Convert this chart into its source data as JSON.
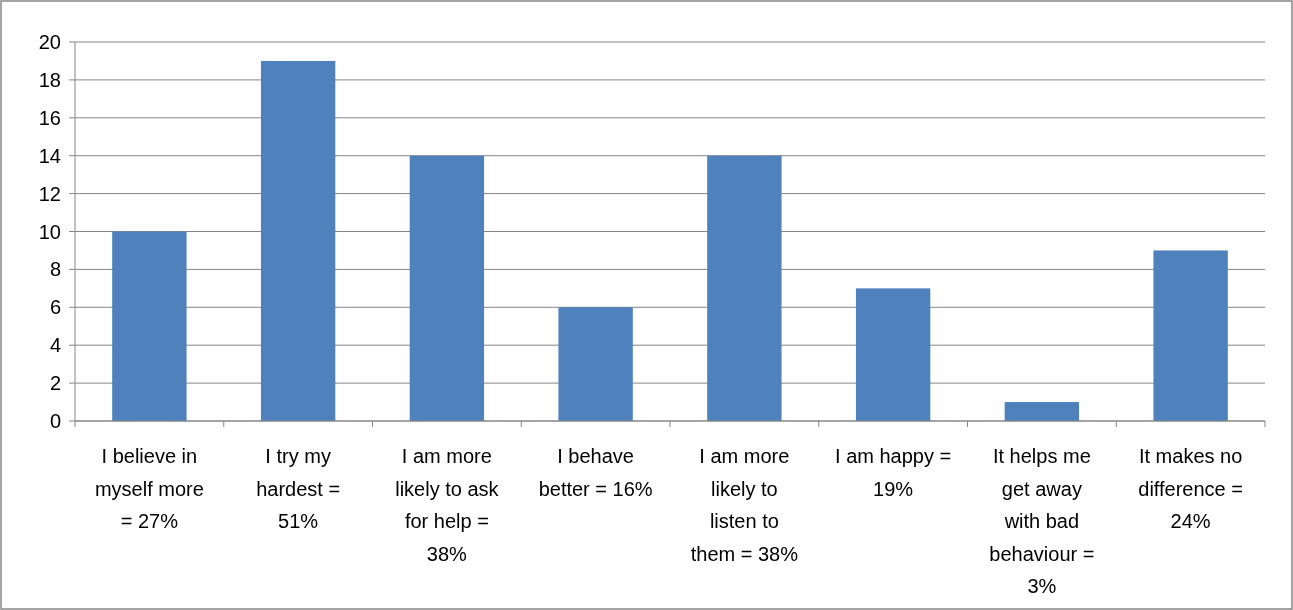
{
  "chart_data": {
    "type": "bar",
    "categories": [
      "I believe in myself more = 27%",
      "I try my hardest = 51%",
      "I am more likely to ask for help = 38%",
      "I behave better = 16%",
      "I am more likely to listen to them = 38%",
      "I am happy = 19%",
      "It helps me get away with bad behaviour = 3%",
      "It makes no difference = 24%"
    ],
    "values": [
      10,
      19,
      14,
      6,
      14,
      7,
      1,
      9
    ],
    "color": "#4f81bd",
    "ylim": [
      0,
      20
    ],
    "yticks": [
      0,
      2,
      4,
      6,
      8,
      10,
      12,
      14,
      16,
      18,
      20
    ],
    "grid": "y"
  }
}
